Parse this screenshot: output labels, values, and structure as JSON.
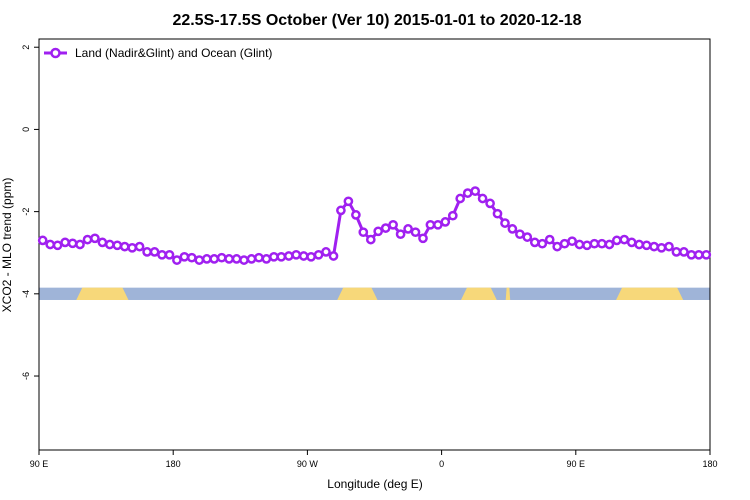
{
  "chart_data": {
    "type": "line",
    "title": "22.5S-17.5S October (Ver 10)   2015-01-01 to 2020-12-18",
    "xlabel": "Longitude (deg E)",
    "ylabel": "XCO2 - MLO trend (ppm)",
    "xlim": [
      90,
      540
    ],
    "ylim": [
      -7.8,
      2.2
    ],
    "x_ticks": [
      {
        "value": 90,
        "label": "90 E"
      },
      {
        "value": 180,
        "label": "180"
      },
      {
        "value": 270,
        "label": "90 W"
      },
      {
        "value": 360,
        "label": "0"
      },
      {
        "value": 450,
        "label": "90 E"
      },
      {
        "value": 540,
        "label": "180"
      }
    ],
    "y_ticks": [
      {
        "value": 2,
        "label": "2"
      },
      {
        "value": 0,
        "label": "0"
      },
      {
        "value": -2,
        "label": "-2"
      },
      {
        "value": -4,
        "label": "-4"
      },
      {
        "value": -6,
        "label": "-6"
      }
    ],
    "legend": {
      "position": "top-left"
    },
    "series": [
      {
        "name": "Land (Nadir&Glint) and Ocean (Glint)",
        "color": "#a020f0",
        "x": [
          92.5,
          97.5,
          102.5,
          107.5,
          112.5,
          117.5,
          122.5,
          127.5,
          132.5,
          137.5,
          142.5,
          147.5,
          152.5,
          157.5,
          162.5,
          167.5,
          172.5,
          177.5,
          182.5,
          187.5,
          192.5,
          197.5,
          202.5,
          207.5,
          212.5,
          217.5,
          222.5,
          227.5,
          232.5,
          237.5,
          242.5,
          247.5,
          252.5,
          257.5,
          262.5,
          267.5,
          272.5,
          277.5,
          282.5,
          287.5,
          292.5,
          297.5,
          302.5,
          307.5,
          312.5,
          317.5,
          322.5,
          327.5,
          332.5,
          337.5,
          342.5,
          347.5,
          352.5,
          357.5,
          362.5,
          367.5,
          372.5,
          377.5,
          382.5,
          387.5,
          392.5,
          397.5,
          402.5,
          407.5,
          412.5,
          417.5,
          422.5,
          427.5,
          432.5,
          437.5,
          442.5,
          447.5,
          452.5,
          457.5,
          462.5,
          467.5,
          472.5,
          477.5,
          482.5,
          487.5,
          492.5,
          497.5,
          502.5,
          507.5,
          512.5,
          517.5,
          522.5,
          527.5,
          532.5,
          537.5
        ],
        "y": [
          -2.7,
          -2.8,
          -2.82,
          -2.75,
          -2.77,
          -2.8,
          -2.68,
          -2.65,
          -2.75,
          -2.8,
          -2.82,
          -2.85,
          -2.88,
          -2.85,
          -2.98,
          -2.98,
          -3.05,
          -3.05,
          -3.18,
          -3.1,
          -3.12,
          -3.18,
          -3.15,
          -3.15,
          -3.12,
          -3.15,
          -3.15,
          -3.18,
          -3.15,
          -3.12,
          -3.15,
          -3.1,
          -3.1,
          -3.08,
          -3.05,
          -3.08,
          -3.1,
          -3.05,
          -2.98,
          -3.08,
          -1.97,
          -1.75,
          -2.08,
          -2.5,
          -2.68,
          -2.48,
          -2.4,
          -2.32,
          -2.55,
          -2.42,
          -2.5,
          -2.65,
          -2.32,
          -2.32,
          -2.25,
          -2.1,
          -1.68,
          -1.55,
          -1.5,
          -1.68,
          -1.8,
          -2.05,
          -2.28,
          -2.42,
          -2.55,
          -2.62,
          -2.75,
          -2.78,
          -2.68,
          -2.85,
          -2.78,
          -2.72,
          -2.8,
          -2.82,
          -2.78,
          -2.78,
          -2.8,
          -2.7,
          -2.68,
          -2.75,
          -2.8,
          -2.82,
          -2.85,
          -2.88,
          -2.85,
          -2.98,
          -2.98,
          -3.05,
          -3.05,
          -3.05
        ]
      }
    ],
    "surface_band": {
      "y_range": [
        -4.15,
        -3.85
      ],
      "ocean_color": "#9fb4d8",
      "land_color": "#f7d87a",
      "land_segments": [
        [
          115,
          150
        ],
        [
          290,
          317
        ],
        [
          373,
          397
        ],
        [
          403,
          406
        ],
        [
          477,
          522
        ]
      ]
    }
  }
}
